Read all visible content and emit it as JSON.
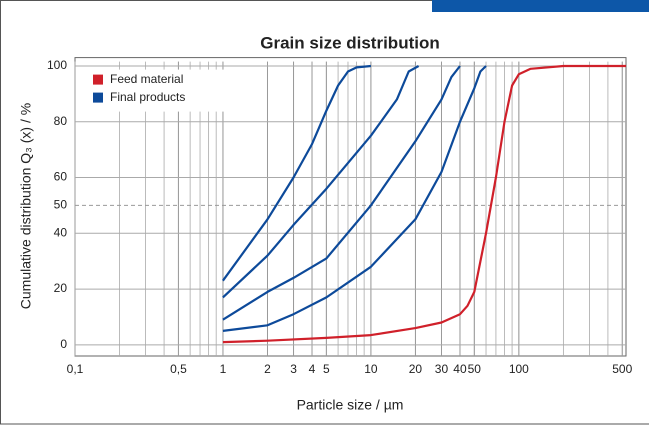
{
  "chart_data": {
    "type": "line",
    "title": "Grain size distribution",
    "xlabel": "Particle size / µm",
    "ylabel": "Cumulative distribution Q₃ (x) / %",
    "xscale": "log",
    "grid": true,
    "minor_grid": true,
    "legend": "upper left",
    "xlim": [
      0.1,
      530
    ],
    "ylim": [
      -4,
      103
    ],
    "xticks": [
      {
        "value": 0.1,
        "label": "0,1"
      },
      {
        "value": 0.5,
        "label": "0,5"
      },
      1,
      2,
      3,
      4,
      5,
      10,
      20,
      30,
      40,
      50,
      100,
      500
    ],
    "yticks": [
      0,
      20,
      40,
      50,
      60,
      80,
      100
    ],
    "reference_lines": [
      50
    ],
    "series": [
      {
        "name": "Feed material",
        "color": "#d0202a",
        "x": [
          1,
          2,
          5,
          10,
          20,
          30,
          40,
          45,
          50,
          60,
          70,
          80,
          90,
          100,
          120,
          200,
          530
        ],
        "values": [
          1,
          1.5,
          2.5,
          3.5,
          6,
          8,
          11,
          14,
          19,
          40,
          60,
          80,
          93,
          97,
          99,
          100,
          100
        ]
      },
      {
        "name": "Final products",
        "color": "#0d4a9a",
        "x": [
          1,
          2,
          3,
          4,
          5,
          6,
          7,
          8,
          10
        ],
        "values": [
          23,
          45,
          60,
          72,
          84,
          93,
          98,
          99.5,
          100
        ]
      },
      {
        "color": "#0d4a9a",
        "x": [
          1,
          2,
          3,
          5,
          10,
          15,
          18,
          21
        ],
        "values": [
          17,
          32,
          43,
          56,
          75,
          88,
          98,
          100
        ]
      },
      {
        "color": "#0d4a9a",
        "x": [
          1,
          2,
          3,
          5,
          10,
          20,
          30,
          35,
          40
        ],
        "values": [
          9,
          19,
          24,
          31,
          50,
          73,
          88,
          96,
          100
        ]
      },
      {
        "color": "#0d4a9a",
        "x": [
          1,
          2,
          3,
          5,
          10,
          20,
          30,
          40,
          50,
          55,
          60
        ],
        "values": [
          5,
          7,
          11,
          17,
          28,
          45,
          62,
          80,
          92,
          98,
          100
        ]
      }
    ]
  }
}
